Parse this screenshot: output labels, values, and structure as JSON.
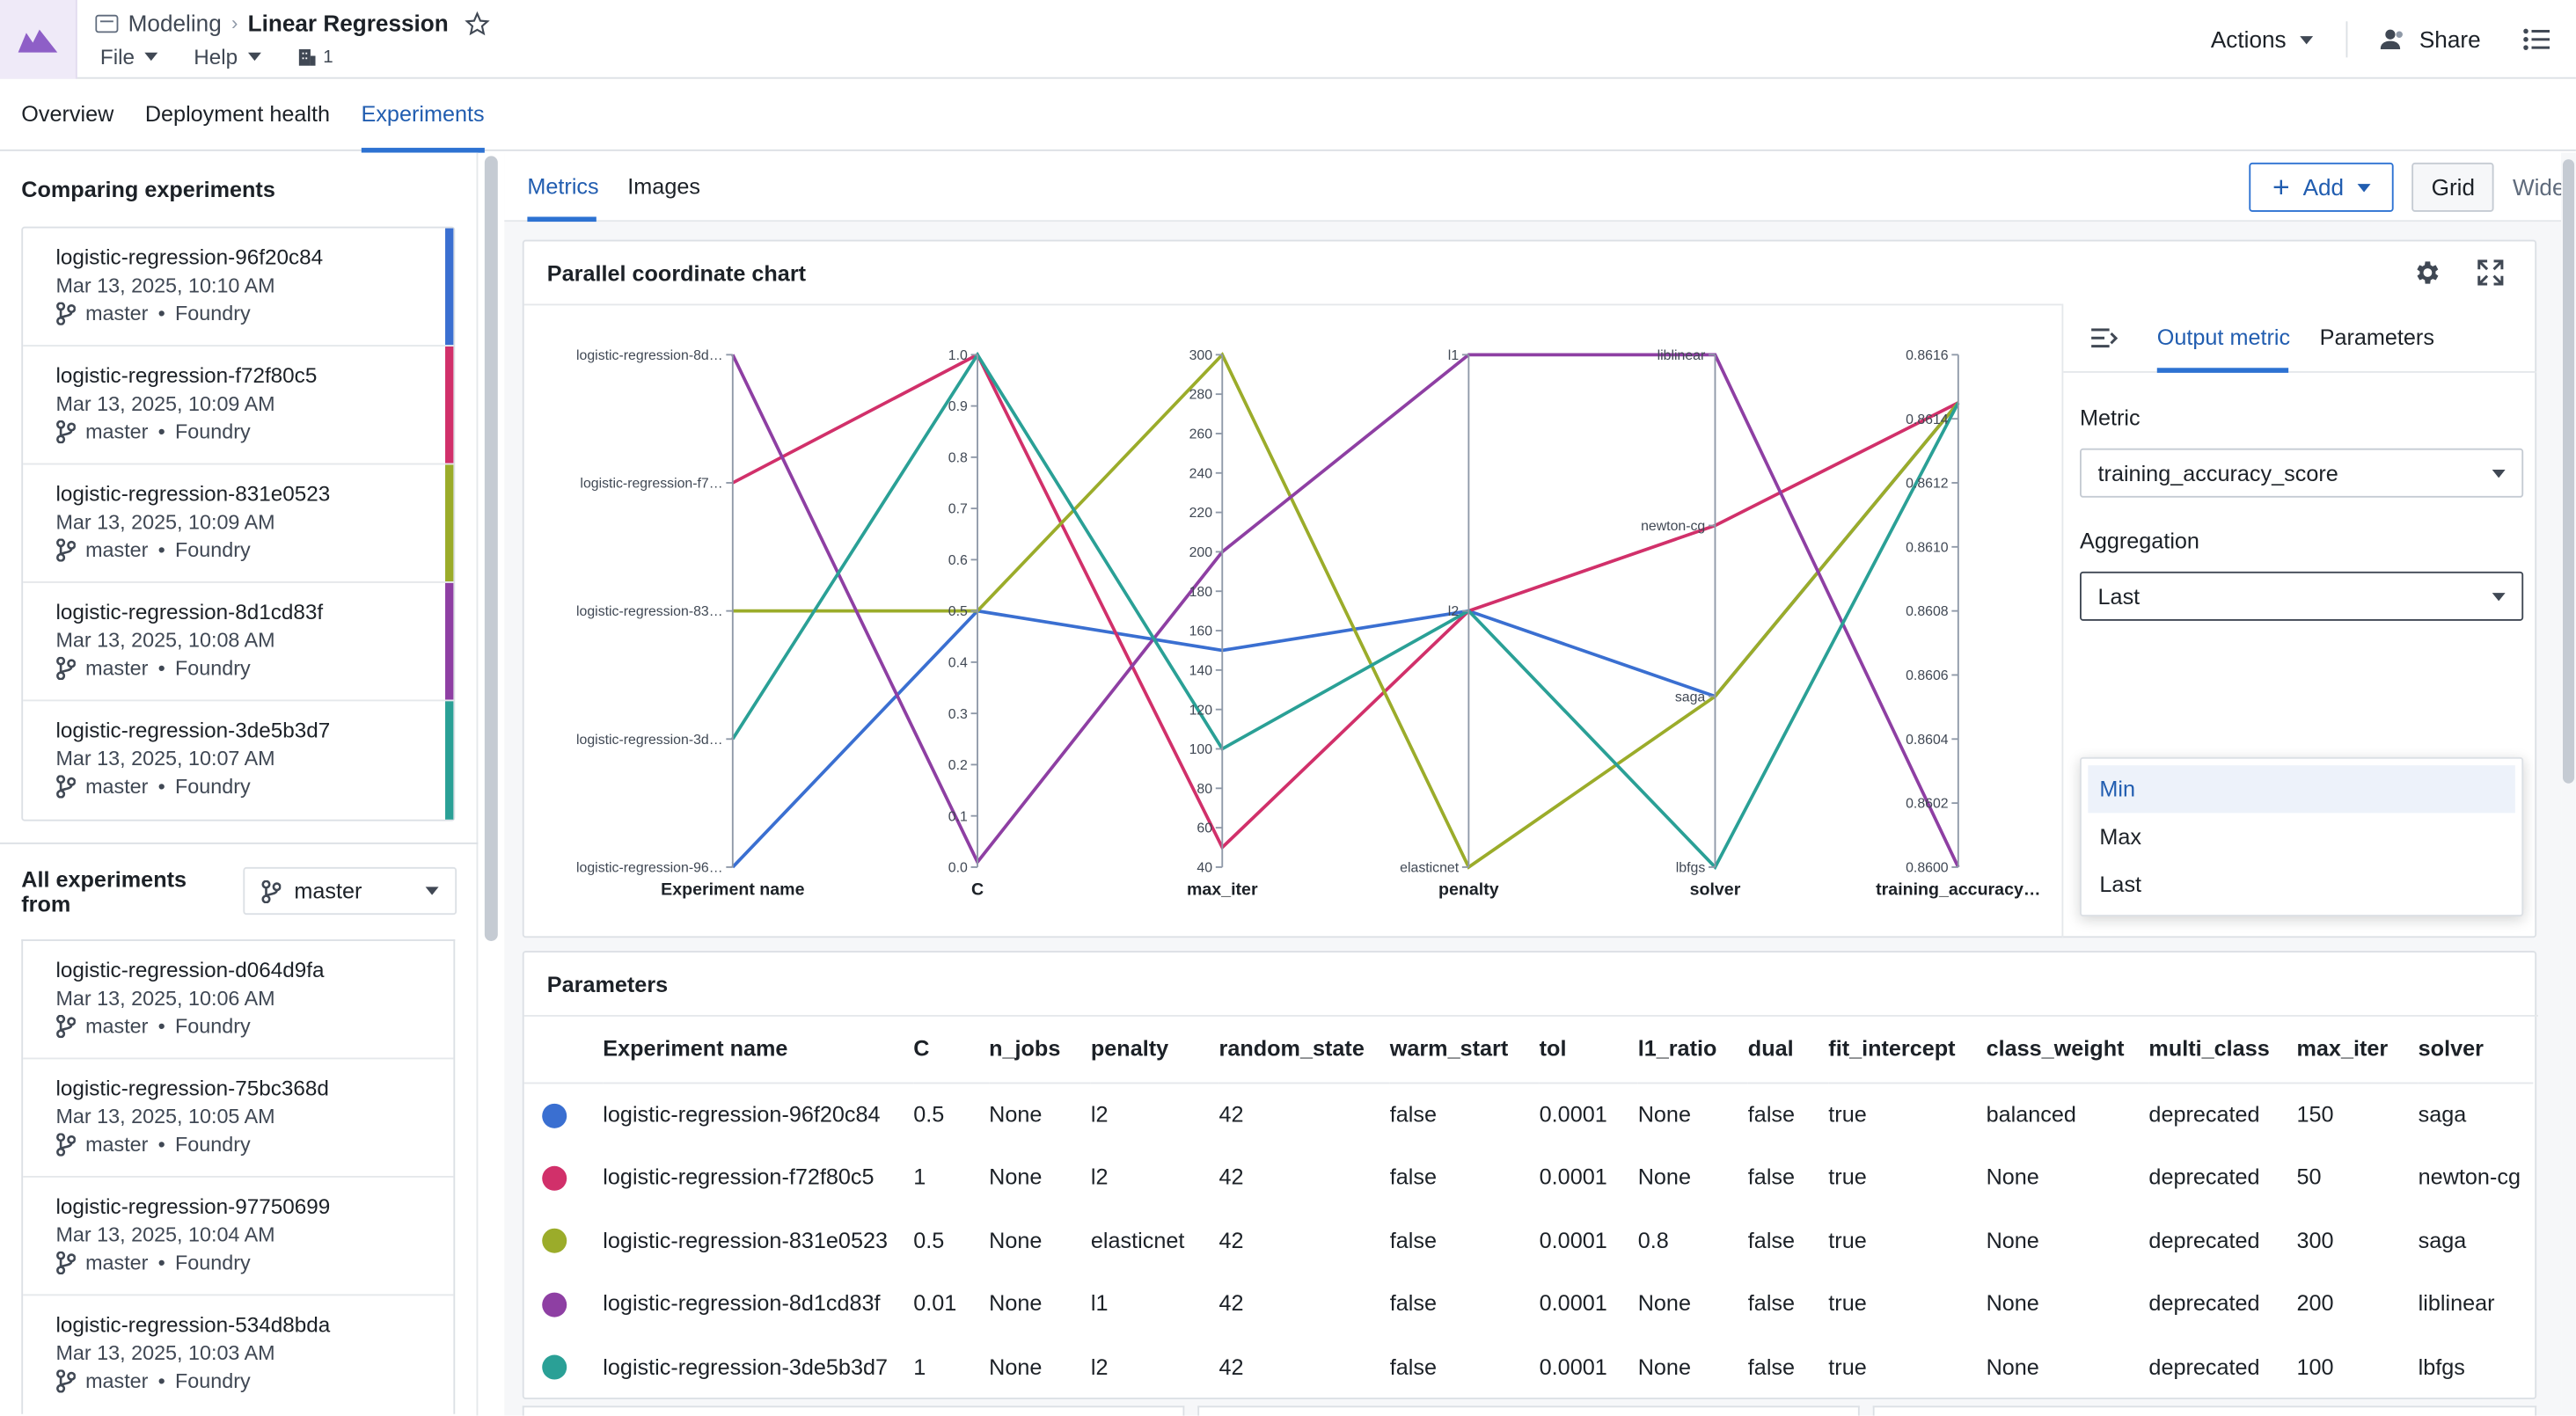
{
  "header": {
    "breadcrumb_parent": "Modeling",
    "title": "Linear Regression",
    "menu_file": "File",
    "menu_help": "Help",
    "org_count": "1",
    "actions_label": "Actions",
    "share_label": "Share"
  },
  "main_tabs": [
    "Overview",
    "Deployment health",
    "Experiments"
  ],
  "sidebar": {
    "comparing_title": "Comparing experiments",
    "comparing": [
      {
        "name": "logistic-regression-96f20c84",
        "date": "Mar 13, 2025, 10:10 AM",
        "branch": "master",
        "source": "Foundry",
        "color": "#3a6fd1"
      },
      {
        "name": "logistic-regression-f72f80c5",
        "date": "Mar 13, 2025, 10:09 AM",
        "branch": "master",
        "source": "Foundry",
        "color": "#d1306a"
      },
      {
        "name": "logistic-regression-831e0523",
        "date": "Mar 13, 2025, 10:09 AM",
        "branch": "master",
        "source": "Foundry",
        "color": "#9bac2a"
      },
      {
        "name": "logistic-regression-8d1cd83f",
        "date": "Mar 13, 2025, 10:08 AM",
        "branch": "master",
        "source": "Foundry",
        "color": "#8e3fa3"
      },
      {
        "name": "logistic-regression-3de5b3d7",
        "date": "Mar 13, 2025, 10:07 AM",
        "branch": "master",
        "source": "Foundry",
        "color": "#2aa096"
      }
    ],
    "all_title": "All experiments from",
    "branch_select": "master",
    "all": [
      {
        "name": "logistic-regression-d064d9fa",
        "date": "Mar 13, 2025, 10:06 AM",
        "branch": "master",
        "source": "Foundry"
      },
      {
        "name": "logistic-regression-75bc368d",
        "date": "Mar 13, 2025, 10:05 AM",
        "branch": "master",
        "source": "Foundry"
      },
      {
        "name": "logistic-regression-97750699",
        "date": "Mar 13, 2025, 10:04 AM",
        "branch": "master",
        "source": "Foundry"
      },
      {
        "name": "logistic-regression-534d8bda",
        "date": "Mar 13, 2025, 10:03 AM",
        "branch": "master",
        "source": "Foundry"
      }
    ]
  },
  "content": {
    "tabs": [
      "Metrics",
      "Images"
    ],
    "add_label": "Add",
    "view_grid": "Grid",
    "view_wide": "Wide",
    "chart_title": "Parallel coordinate chart",
    "side_tabs": [
      "Output metric",
      "Parameters"
    ],
    "metric_label": "Metric",
    "metric_value": "training_accuracy_score",
    "aggregation_label": "Aggregation",
    "aggregation_value": "Last",
    "aggregation_options": [
      "Min",
      "Max",
      "Last"
    ],
    "params_title": "Parameters"
  },
  "chart_data": {
    "type": "parallel-coordinates",
    "axes": [
      {
        "name": "Experiment name",
        "kind": "categorical",
        "ticks": [
          "logistic-regression-8d…",
          "logistic-regression-f7…",
          "logistic-regression-83…",
          "logistic-regression-3d…",
          "logistic-regression-96…"
        ]
      },
      {
        "name": "C",
        "kind": "numeric",
        "range": [
          0,
          1
        ],
        "ticks": [
          "1.0",
          "0.9",
          "0.8",
          "0.7",
          "0.6",
          "0.5",
          "0.4",
          "0.3",
          "0.2",
          "0.1",
          "0.0"
        ]
      },
      {
        "name": "max_iter",
        "kind": "numeric",
        "range": [
          40,
          300
        ],
        "ticks": [
          "300",
          "280",
          "260",
          "240",
          "220",
          "200",
          "180",
          "160",
          "140",
          "120",
          "100",
          "80",
          "60",
          "40"
        ]
      },
      {
        "name": "penalty",
        "kind": "categorical",
        "ticks": [
          "l1",
          "l2",
          "elasticnet"
        ]
      },
      {
        "name": "solver",
        "kind": "categorical",
        "ticks": [
          "liblinear",
          "newton-cg",
          "saga",
          "lbfgs"
        ]
      },
      {
        "name": "training_accuracy…",
        "kind": "numeric",
        "range": [
          0.86,
          0.8616
        ],
        "ticks": [
          "0.8616",
          "0.8614",
          "0.8612",
          "0.8610",
          "0.8608",
          "0.8606",
          "0.8604",
          "0.8602",
          "0.8600"
        ]
      }
    ],
    "series": [
      {
        "experiment": "logistic-regression-96…",
        "color": "#3a6fd1",
        "C": 0.5,
        "max_iter": 150,
        "penalty": "l2",
        "solver": "saga",
        "training_accuracy": 0.86145
      },
      {
        "experiment": "logistic-regression-f7…",
        "color": "#d1306a",
        "C": 1,
        "max_iter": 50,
        "penalty": "l2",
        "solver": "newton-cg",
        "training_accuracy": 0.86145
      },
      {
        "experiment": "logistic-regression-83…",
        "color": "#9bac2a",
        "C": 0.5,
        "max_iter": 300,
        "penalty": "elasticnet",
        "solver": "saga",
        "training_accuracy": 0.86145
      },
      {
        "experiment": "logistic-regression-8d…",
        "color": "#8e3fa3",
        "C": 0.01,
        "max_iter": 200,
        "penalty": "l1",
        "solver": "liblinear",
        "training_accuracy": 0.86
      },
      {
        "experiment": "logistic-regression-3d…",
        "color": "#2aa096",
        "C": 1,
        "max_iter": 100,
        "penalty": "l2",
        "solver": "lbfgs",
        "training_accuracy": 0.86145
      }
    ]
  },
  "params_table": {
    "columns": [
      "Experiment name",
      "C",
      "n_jobs",
      "penalty",
      "random_state",
      "warm_start",
      "tol",
      "l1_ratio",
      "dual",
      "fit_intercept",
      "class_weight",
      "multi_class",
      "max_iter",
      "solver"
    ],
    "rows": [
      {
        "color": "#3a6fd1",
        "cells": [
          "logistic-regression-96f20c84",
          "0.5",
          "None",
          "l2",
          "42",
          "false",
          "0.0001",
          "None",
          "false",
          "true",
          "balanced",
          "deprecated",
          "150",
          "saga"
        ]
      },
      {
        "color": "#d1306a",
        "cells": [
          "logistic-regression-f72f80c5",
          "1",
          "None",
          "l2",
          "42",
          "false",
          "0.0001",
          "None",
          "false",
          "true",
          "None",
          "deprecated",
          "50",
          "newton-cg"
        ]
      },
      {
        "color": "#9bac2a",
        "cells": [
          "logistic-regression-831e0523",
          "0.5",
          "None",
          "elasticnet",
          "42",
          "false",
          "0.0001",
          "0.8",
          "false",
          "true",
          "None",
          "deprecated",
          "300",
          "saga"
        ]
      },
      {
        "color": "#8e3fa3",
        "cells": [
          "logistic-regression-8d1cd83f",
          "0.01",
          "None",
          "l1",
          "42",
          "false",
          "0.0001",
          "None",
          "false",
          "true",
          "None",
          "deprecated",
          "200",
          "liblinear"
        ]
      },
      {
        "color": "#2aa096",
        "cells": [
          "logistic-regression-3de5b3d7",
          "1",
          "None",
          "l2",
          "42",
          "false",
          "0.0001",
          "None",
          "false",
          "true",
          "None",
          "deprecated",
          "100",
          "lbfgs"
        ]
      }
    ]
  }
}
